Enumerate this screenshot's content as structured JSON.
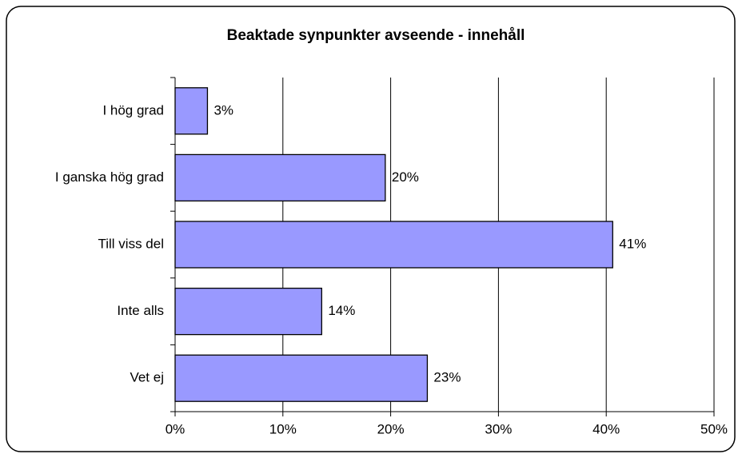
{
  "chart_data": {
    "type": "bar",
    "orientation": "horizontal",
    "title": "Beaktade synpunkter avseende  - innehåll",
    "categories": [
      "I hög grad",
      "I ganska hög grad",
      "Till viss del",
      "Inte alls",
      "Vet ej"
    ],
    "values": [
      3.0,
      19.5,
      40.6,
      13.6,
      23.4
    ],
    "value_labels": [
      "3%",
      "20%",
      "41%",
      "14%",
      "23%"
    ],
    "color": "#9999ff",
    "xlim": [
      0,
      50
    ],
    "xticks": [
      {
        "value": 0,
        "label": "0%"
      },
      {
        "value": 10,
        "label": "10%"
      },
      {
        "value": 20,
        "label": "20%"
      },
      {
        "value": 30,
        "label": "30%"
      },
      {
        "value": 40,
        "label": "40%"
      },
      {
        "value": 50,
        "label": "50%"
      }
    ],
    "grid": true
  }
}
